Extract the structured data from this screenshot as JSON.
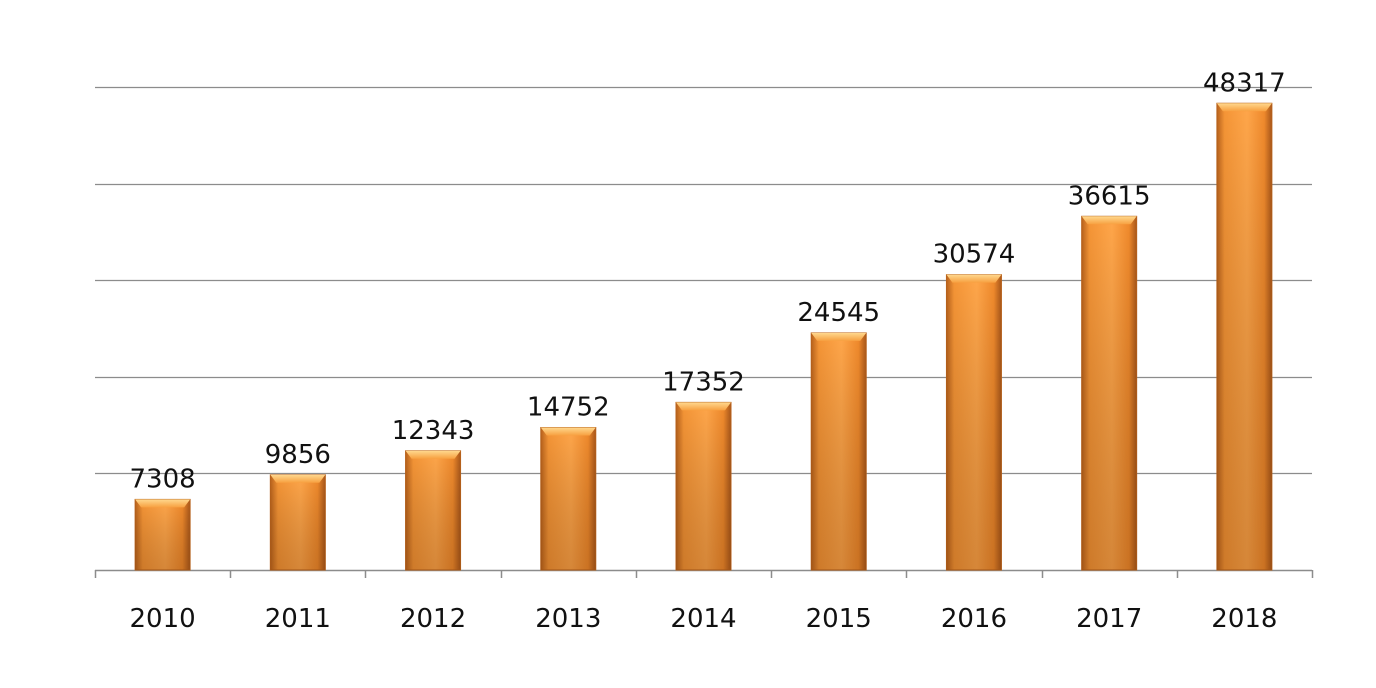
{
  "chart_data": {
    "type": "bar",
    "categories": [
      "2010",
      "2011",
      "2012",
      "2013",
      "2014",
      "2015",
      "2016",
      "2017",
      "2018"
    ],
    "values": [
      7308,
      9856,
      12343,
      14752,
      17352,
      24545,
      30574,
      36615,
      48317
    ],
    "data_labels": [
      "7308",
      "9856",
      "12343",
      "14752",
      "17352",
      "24545",
      "30574",
      "36615",
      "48317"
    ],
    "title": "",
    "xlabel": "",
    "ylabel": "",
    "ylim": [
      0,
      50000
    ],
    "y_gridline_step": 10000,
    "y_tick_labels_shown": false,
    "grid": true,
    "legend": "none",
    "bar_color": "#F59536",
    "bar_color_dark": "#B8621C",
    "bar_color_light": "#FFC46E",
    "grid_color": "#8C8C8C"
  }
}
